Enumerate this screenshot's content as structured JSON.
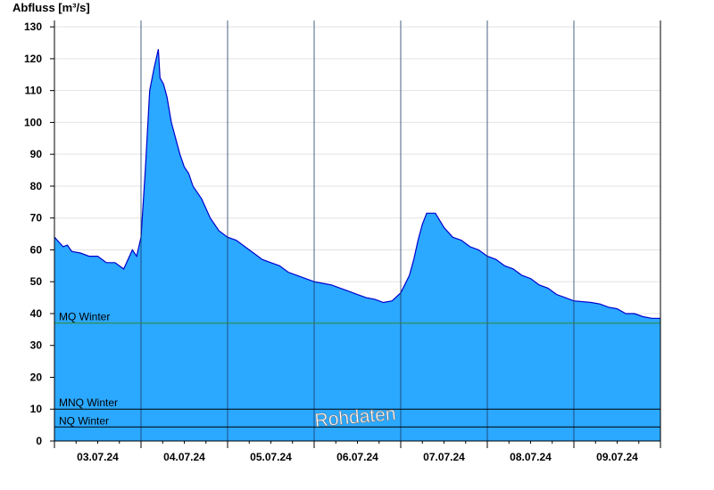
{
  "chart_data": {
    "type": "area",
    "ylabel": "Abfluss [m³/s]",
    "ylim": [
      0,
      132
    ],
    "yticks": [
      0,
      10,
      20,
      30,
      40,
      50,
      60,
      70,
      80,
      90,
      100,
      110,
      120,
      130
    ],
    "xlim": [
      0,
      7
    ],
    "x_tick_labels": [
      "03.07.24",
      "04.07.24",
      "05.07.24",
      "06.07.24",
      "07.07.24",
      "08.07.24",
      "09.07.24"
    ],
    "grid": true,
    "watermark": "Rohdaten",
    "colors": {
      "fill": "#2ba8ff",
      "line": "#0000cc",
      "mq_line": "#2e8b2e",
      "ref_line": "#000000"
    },
    "reference_lines": [
      {
        "label": "MQ Winter",
        "value": 37
      },
      {
        "label": "MNQ Winter",
        "value": 10
      },
      {
        "label": "NQ Winter",
        "value": 4.4
      }
    ],
    "series": [
      {
        "values": [
          [
            0.0,
            64
          ],
          [
            0.05,
            62.5
          ],
          [
            0.1,
            61
          ],
          [
            0.15,
            61.5
          ],
          [
            0.2,
            59.5
          ],
          [
            0.3,
            59
          ],
          [
            0.4,
            58
          ],
          [
            0.5,
            58
          ],
          [
            0.6,
            56
          ],
          [
            0.7,
            56
          ],
          [
            0.8,
            54
          ],
          [
            0.9,
            60
          ],
          [
            0.95,
            58
          ],
          [
            1.0,
            64
          ],
          [
            1.05,
            85
          ],
          [
            1.1,
            110
          ],
          [
            1.15,
            117
          ],
          [
            1.2,
            123
          ],
          [
            1.22,
            114
          ],
          [
            1.26,
            112
          ],
          [
            1.3,
            108
          ],
          [
            1.35,
            100
          ],
          [
            1.4,
            95
          ],
          [
            1.45,
            90
          ],
          [
            1.5,
            86
          ],
          [
            1.55,
            84
          ],
          [
            1.6,
            80
          ],
          [
            1.7,
            76
          ],
          [
            1.8,
            70
          ],
          [
            1.9,
            66
          ],
          [
            2.0,
            64
          ],
          [
            2.1,
            63
          ],
          [
            2.2,
            61
          ],
          [
            2.3,
            59
          ],
          [
            2.4,
            57
          ],
          [
            2.5,
            56
          ],
          [
            2.6,
            55
          ],
          [
            2.7,
            53
          ],
          [
            2.8,
            52
          ],
          [
            3.0,
            50
          ],
          [
            3.1,
            49.5
          ],
          [
            3.2,
            49
          ],
          [
            3.3,
            48
          ],
          [
            3.4,
            47
          ],
          [
            3.5,
            46
          ],
          [
            3.6,
            45
          ],
          [
            3.7,
            44.5
          ],
          [
            3.8,
            43.5
          ],
          [
            3.9,
            44
          ],
          [
            4.0,
            46.5
          ],
          [
            4.1,
            52
          ],
          [
            4.15,
            57
          ],
          [
            4.2,
            63
          ],
          [
            4.25,
            68
          ],
          [
            4.3,
            71.5
          ],
          [
            4.4,
            71.5
          ],
          [
            4.5,
            67
          ],
          [
            4.6,
            64
          ],
          [
            4.7,
            63
          ],
          [
            4.8,
            61
          ],
          [
            4.9,
            60
          ],
          [
            5.0,
            58
          ],
          [
            5.1,
            57
          ],
          [
            5.2,
            55
          ],
          [
            5.3,
            54
          ],
          [
            5.4,
            52
          ],
          [
            5.5,
            51
          ],
          [
            5.6,
            49
          ],
          [
            5.7,
            48
          ],
          [
            5.8,
            46
          ],
          [
            5.9,
            45
          ],
          [
            6.0,
            44
          ],
          [
            6.2,
            43.5
          ],
          [
            6.3,
            43
          ],
          [
            6.4,
            42
          ],
          [
            6.5,
            41.5
          ],
          [
            6.6,
            40
          ],
          [
            6.7,
            40
          ],
          [
            6.8,
            39
          ],
          [
            6.9,
            38.5
          ],
          [
            7.0,
            38.5
          ]
        ]
      }
    ]
  }
}
